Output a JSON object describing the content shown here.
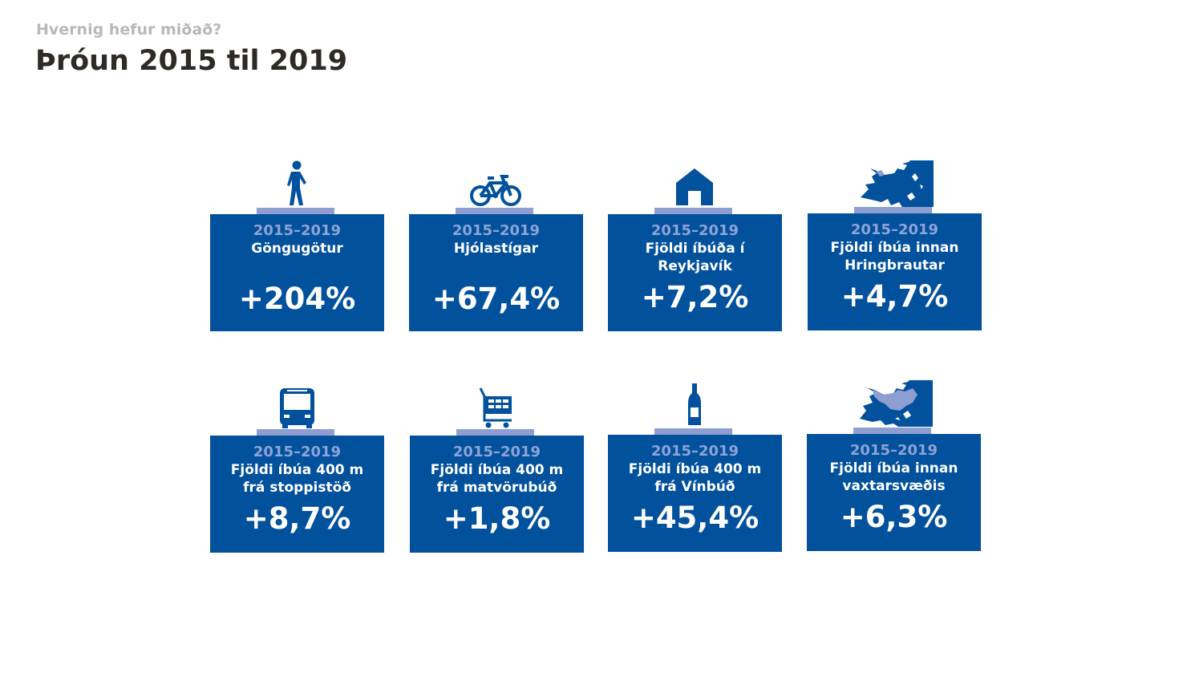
{
  "header": {
    "kicker": "Hvernig hefur miðað?",
    "title": "Þróun 2015 til 2019"
  },
  "colors": {
    "box": "#02519d",
    "accent": "#8f9ed0",
    "period_text": "#8ea3d6",
    "title": "#2e2a26",
    "kicker": "#b8b8b8"
  },
  "cards": [
    {
      "icon": "pedestrian-icon",
      "period": "2015–2019",
      "label": "Göngugötur",
      "value": "+204%"
    },
    {
      "icon": "bicycle-icon",
      "period": "2015–2019",
      "label": "Hjólastígar",
      "value": "+67,4%"
    },
    {
      "icon": "house-icon",
      "period": "2015–2019",
      "label": "Fjöldi íbúða í\nReykjavík",
      "value": "+7,2%"
    },
    {
      "icon": "city-map-icon",
      "period": "2015–2019",
      "label": "Fjöldi íbúa innan\nHringbrautar",
      "value": "+4,7%"
    },
    {
      "icon": "bus-icon",
      "period": "2015–2019",
      "label": "Fjöldi íbúa 400 m\nfrá stoppistöð",
      "value": "+8,7%"
    },
    {
      "icon": "shopping-cart-icon",
      "period": "2015–2019",
      "label": "Fjöldi íbúa 400 m\nfrá matvörubúð",
      "value": "+1,8%"
    },
    {
      "icon": "wine-bottle-icon",
      "period": "2015–2019",
      "label": "Fjöldi íbúa 400 m\nfrá Vínbúð",
      "value": "+45,4%"
    },
    {
      "icon": "growth-area-map-icon",
      "period": "2015–2019",
      "label": "Fjöldi íbúa innan\nvaxtarsvæðis",
      "value": "+6,3%"
    }
  ]
}
